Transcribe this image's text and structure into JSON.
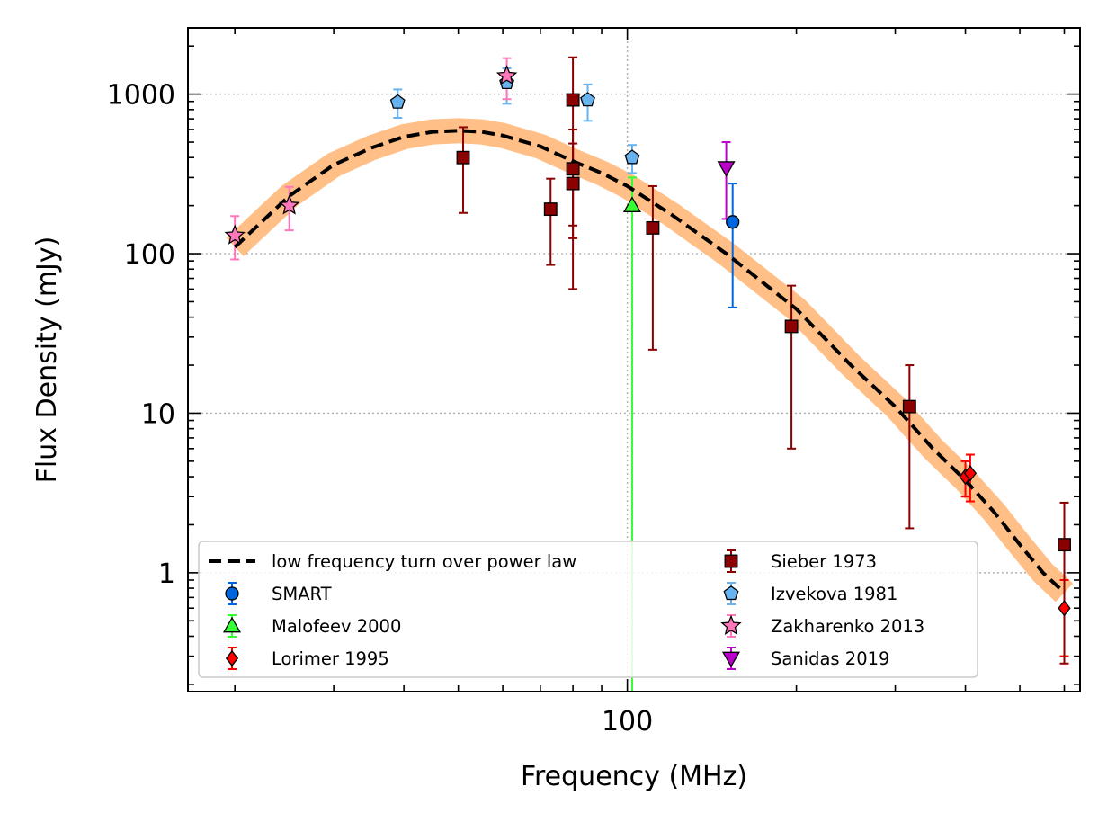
{
  "chart_data": {
    "type": "scatter",
    "xlabel": "Frequency (MHz)",
    "ylabel": "Flux Density (mJy)",
    "xscale": "log",
    "yscale": "log",
    "xlim": [
      16.5,
      640
    ],
    "ylim": [
      0.18,
      2600
    ],
    "x_ticks": [
      {
        "value": 100,
        "label": "100"
      }
    ],
    "y_ticks": [
      {
        "value": 1,
        "label": "1"
      },
      {
        "value": 10,
        "label": "10"
      },
      {
        "value": 100,
        "label": "100"
      },
      {
        "value": 1000,
        "label": "1000"
      }
    ],
    "grid": true,
    "legend_position": "lower-left",
    "legend_columns": 2,
    "model": {
      "name": "low frequency turn over power law",
      "color": "#000000",
      "band_color": "#ffbf86",
      "points": [
        {
          "x": 20,
          "y": 110
        },
        {
          "x": 25,
          "y": 230
        },
        {
          "x": 30,
          "y": 360
        },
        {
          "x": 35,
          "y": 460
        },
        {
          "x": 40,
          "y": 540
        },
        {
          "x": 45,
          "y": 580
        },
        {
          "x": 50,
          "y": 590
        },
        {
          "x": 55,
          "y": 580
        },
        {
          "x": 60,
          "y": 550
        },
        {
          "x": 70,
          "y": 470
        },
        {
          "x": 80,
          "y": 380
        },
        {
          "x": 90,
          "y": 320
        },
        {
          "x": 100,
          "y": 265
        },
        {
          "x": 120,
          "y": 175
        },
        {
          "x": 150,
          "y": 100
        },
        {
          "x": 200,
          "y": 45
        },
        {
          "x": 250,
          "y": 20
        },
        {
          "x": 300,
          "y": 11
        },
        {
          "x": 350,
          "y": 6
        },
        {
          "x": 400,
          "y": 3.8
        },
        {
          "x": 450,
          "y": 2.4
        },
        {
          "x": 500,
          "y": 1.5
        },
        {
          "x": 550,
          "y": 1.0
        },
        {
          "x": 600,
          "y": 0.75
        }
      ]
    },
    "series": [
      {
        "name": "SMART",
        "marker": "circle",
        "color": "#0066dd",
        "err_color": "#0066dd",
        "points": [
          {
            "x": 154,
            "y": 158,
            "lo": 46,
            "hi": 275
          }
        ]
      },
      {
        "name": "Malofeev 2000",
        "marker": "triangle-up",
        "color": "#33ff33",
        "err_color": "#33ff33",
        "points": [
          {
            "x": 102,
            "y": 200,
            "lo": 0.18,
            "hi": 300
          }
        ]
      },
      {
        "name": "Lorimer 1995",
        "marker": "diamond",
        "color": "#ff0000",
        "err_color": "#ff0000",
        "points": [
          {
            "x": 400,
            "y": 4.0,
            "lo": 3.0,
            "hi": 5.0
          },
          {
            "x": 408,
            "y": 4.2,
            "lo": 2.8,
            "hi": 5.5
          },
          {
            "x": 600,
            "y": 0.6,
            "lo": 0.3,
            "hi": 0.9
          }
        ]
      },
      {
        "name": "Sieber 1973",
        "marker": "square",
        "color": "#8b0000",
        "err_color": "#8b0000",
        "points": [
          {
            "x": 51,
            "y": 400,
            "lo": 180,
            "hi": 620
          },
          {
            "x": 73,
            "y": 190,
            "lo": 85,
            "hi": 295
          },
          {
            "x": 80,
            "y": 920,
            "lo": 150,
            "hi": 1700
          },
          {
            "x": 80,
            "y": 340,
            "lo": 125,
            "hi": 600
          },
          {
            "x": 80,
            "y": 275,
            "lo": 60,
            "hi": 490
          },
          {
            "x": 111,
            "y": 145,
            "lo": 25,
            "hi": 265
          },
          {
            "x": 196,
            "y": 35,
            "lo": 6,
            "hi": 63
          },
          {
            "x": 318,
            "y": 11,
            "lo": 1.9,
            "hi": 20
          },
          {
            "x": 600,
            "y": 1.5,
            "lo": 0.27,
            "hi": 2.75
          }
        ]
      },
      {
        "name": "Izvekova 1981",
        "marker": "pentagon",
        "color": "#66b3f0",
        "err_color": "#66b3f0",
        "points": [
          {
            "x": 39,
            "y": 890,
            "lo": 710,
            "hi": 1070
          },
          {
            "x": 61,
            "y": 1180,
            "lo": 870,
            "hi": 1450
          },
          {
            "x": 85,
            "y": 920,
            "lo": 680,
            "hi": 1150
          },
          {
            "x": 102,
            "y": 400,
            "lo": 320,
            "hi": 480
          }
        ]
      },
      {
        "name": "Zakharenko 2013",
        "marker": "star",
        "color": "#ff77bb",
        "err_color": "#ff77bb",
        "points": [
          {
            "x": 20,
            "y": 130,
            "lo": 92,
            "hi": 172
          },
          {
            "x": 25,
            "y": 200,
            "lo": 140,
            "hi": 262
          },
          {
            "x": 61,
            "y": 1300,
            "lo": 930,
            "hi": 1680
          }
        ]
      },
      {
        "name": "Sanidas 2019",
        "marker": "triangle-down",
        "color": "#bb00cc",
        "err_color": "#bb00cc",
        "points": [
          {
            "x": 150,
            "y": 345,
            "lo": 165,
            "hi": 500
          }
        ]
      }
    ]
  }
}
